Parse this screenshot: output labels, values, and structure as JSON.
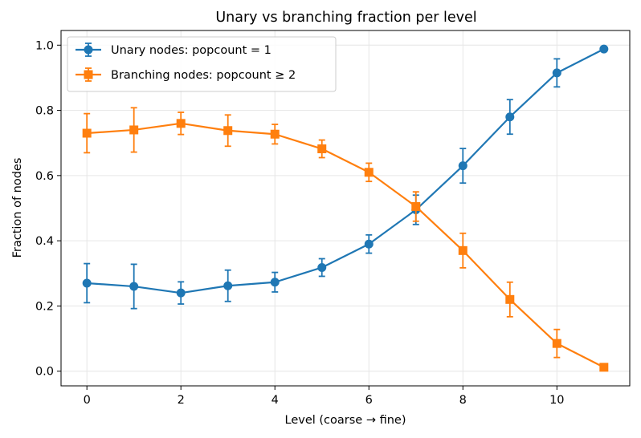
{
  "chart_data": {
    "type": "line",
    "title": "Unary vs branching fraction per level",
    "xlabel": "Level (coarse → fine)",
    "ylabel": "Fraction of nodes",
    "xlim": [
      -0.55,
      11.55
    ],
    "ylim": [
      -0.045,
      1.045
    ],
    "xticks": [
      0,
      2,
      4,
      6,
      8,
      10
    ],
    "xtick_labels": [
      "0",
      "2",
      "4",
      "6",
      "8",
      "10"
    ],
    "yticks": [
      0.0,
      0.2,
      0.4,
      0.6,
      0.8,
      1.0
    ],
    "ytick_labels": [
      "0.0",
      "0.2",
      "0.4",
      "0.6",
      "0.8",
      "1.0"
    ],
    "grid": true,
    "legend_position": "top-left",
    "x": [
      0,
      1,
      2,
      3,
      4,
      5,
      6,
      7,
      8,
      9,
      10,
      11
    ],
    "series": [
      {
        "name": "Unary nodes: popcount = 1",
        "color": "#1f77b4",
        "marker": "circle",
        "values": [
          0.27,
          0.26,
          0.24,
          0.262,
          0.273,
          0.318,
          0.39,
          0.495,
          0.63,
          0.78,
          0.915,
          0.988
        ],
        "errors": [
          0.06,
          0.068,
          0.034,
          0.048,
          0.03,
          0.027,
          0.028,
          0.045,
          0.053,
          0.053,
          0.043,
          0.0
        ]
      },
      {
        "name": "Branching nodes: popcount ≥ 2",
        "color": "#ff7f0e",
        "marker": "square",
        "values": [
          0.73,
          0.74,
          0.76,
          0.738,
          0.727,
          0.682,
          0.61,
          0.505,
          0.37,
          0.22,
          0.085,
          0.012
        ],
        "errors": [
          0.06,
          0.068,
          0.034,
          0.048,
          0.03,
          0.027,
          0.028,
          0.045,
          0.053,
          0.053,
          0.043,
          0.0
        ]
      }
    ]
  }
}
